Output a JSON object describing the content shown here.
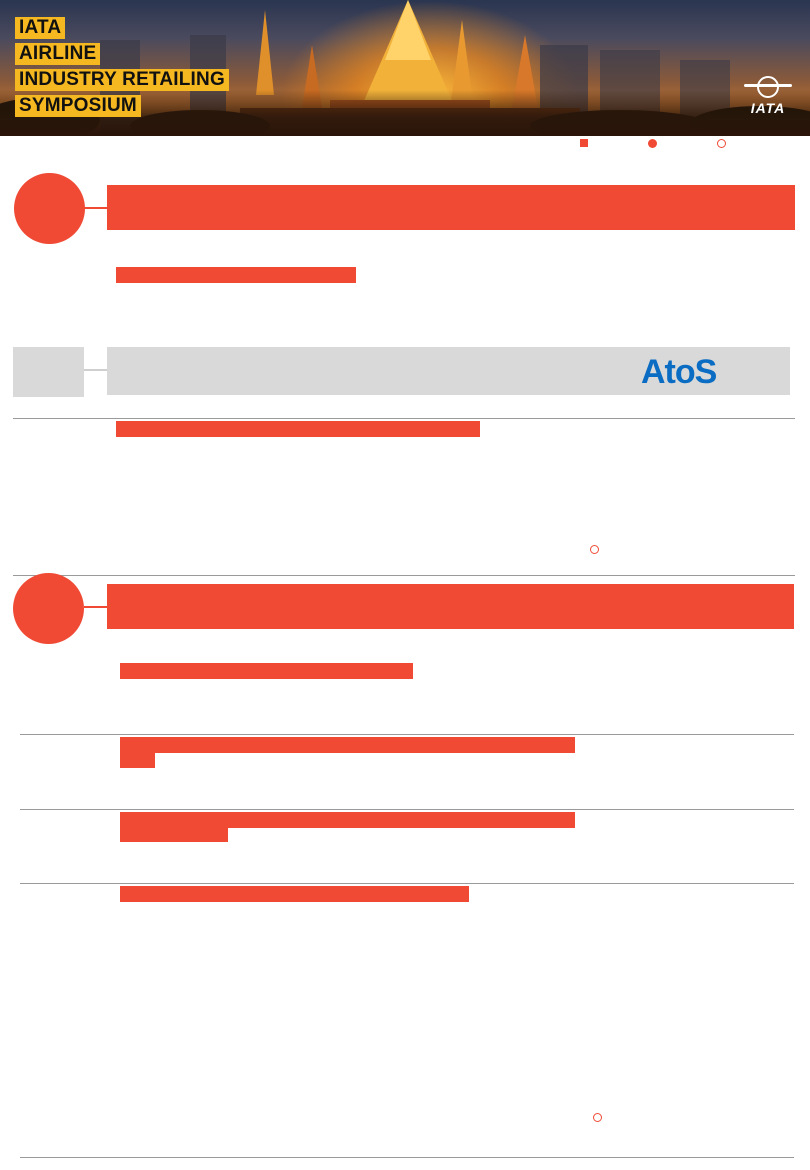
{
  "header": {
    "title_lines": [
      "IATA",
      "AIRLINE",
      "INDUSTRY RETAILING",
      "SYMPOSIUM"
    ],
    "logo_text": "IATA"
  },
  "sponsor": {
    "logo_text": "AtoS",
    "color": "#0a6cc2"
  },
  "colors": {
    "accent": "#f04a35",
    "title_highlight": "#f5b820",
    "divider": "#9a9a9a",
    "sponsor_bar": "#d9d9d9"
  },
  "legend": {
    "icons": [
      "square-marker-icon",
      "filled-dot-marker-icon",
      "ring-marker-icon"
    ]
  }
}
